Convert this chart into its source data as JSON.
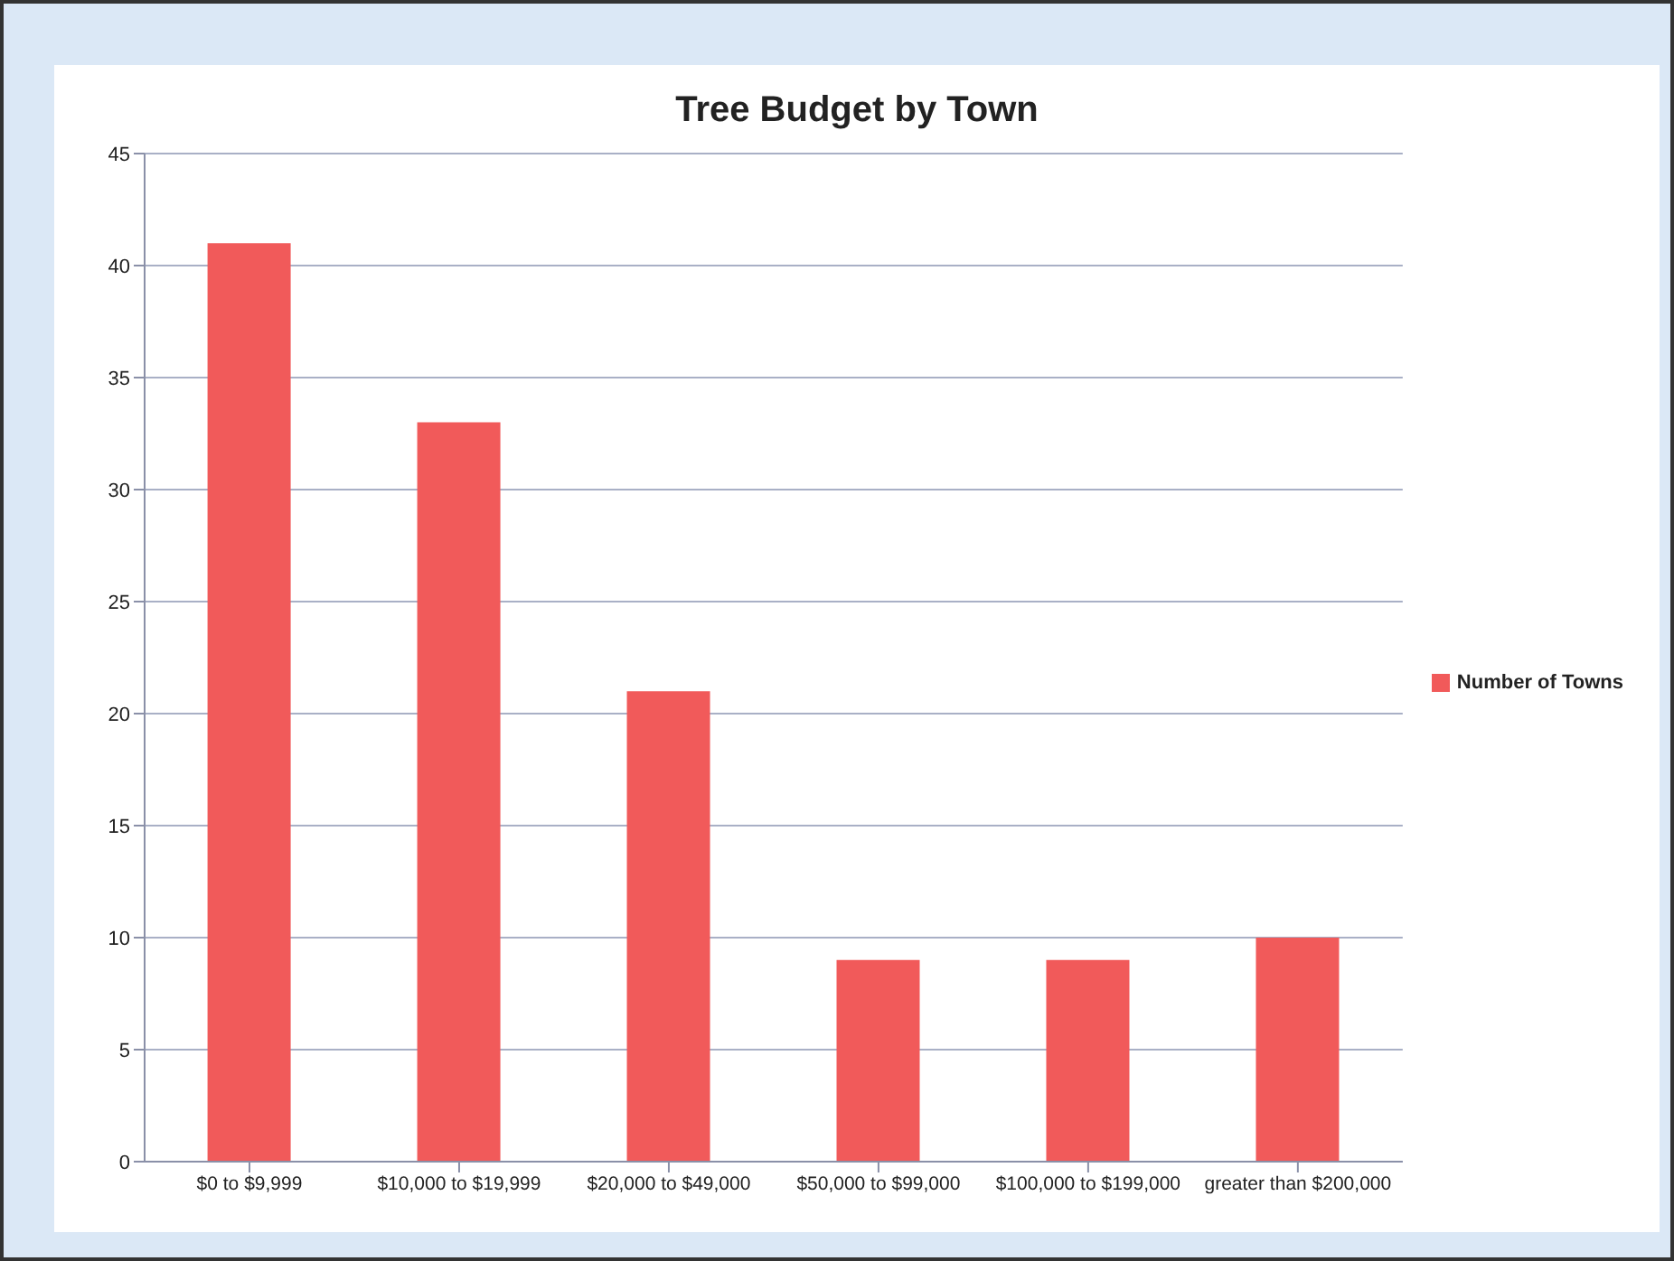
{
  "chart_data": {
    "type": "bar",
    "title": "Tree Budget by Town",
    "categories": [
      "$0 to $9,999",
      "$10,000 to $19,999",
      "$20,000 to $49,000",
      "$50,000 to $99,000",
      "$100,000 to $199,000",
      "greater than $200,000"
    ],
    "series": [
      {
        "name": "Number of Towns",
        "color": "#f15a5a",
        "values": [
          41,
          33,
          21,
          9,
          9,
          10
        ]
      }
    ],
    "ylim": [
      0,
      45
    ],
    "yticks": [
      0,
      5,
      10,
      15,
      20,
      25,
      30,
      35,
      40,
      45
    ],
    "grid": "y",
    "legend": "right"
  }
}
